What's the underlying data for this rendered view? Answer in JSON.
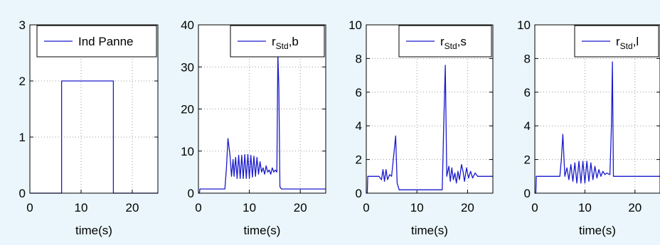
{
  "chart_data": [
    {
      "type": "line",
      "xlabel": "time(s)",
      "ylabel": "",
      "xlim": [
        0,
        25
      ],
      "ylim": [
        0,
        3
      ],
      "xticks": [
        "0",
        "10",
        "20"
      ],
      "yticks": [
        "0",
        "1",
        "2",
        "3"
      ],
      "legend": {
        "main": "Ind Panne",
        "sub": "",
        "suffix": "",
        "placement": "top-right"
      },
      "grid": true,
      "series": [
        {
          "name": "Ind Panne",
          "x": [
            0,
            6.2,
            6.2,
            16.3,
            16.3,
            25
          ],
          "y": [
            0,
            0,
            2,
            2,
            0,
            0
          ]
        }
      ]
    },
    {
      "type": "line",
      "xlabel": "time(s)",
      "ylabel": "",
      "xlim": [
        0,
        25
      ],
      "ylim": [
        0,
        40
      ],
      "xticks": [
        "0",
        "10",
        "20"
      ],
      "yticks": [
        "0",
        "10",
        "20",
        "30",
        "40"
      ],
      "legend": {
        "main": "r",
        "sub": "Std",
        "suffix": ",b",
        "placement": "top-right"
      },
      "grid": true,
      "series": [
        {
          "name": "r_Std,b",
          "x": [
            0,
            0.2,
            0.3,
            5.2,
            5.5,
            5.8,
            6.2,
            6.5,
            6.8,
            7.0,
            7.3,
            7.6,
            7.9,
            8.2,
            8.5,
            8.8,
            9.1,
            9.4,
            9.7,
            10.0,
            10.3,
            10.6,
            10.9,
            11.2,
            11.5,
            11.8,
            12.1,
            12.4,
            12.7,
            13.0,
            13.3,
            13.6,
            13.9,
            14.2,
            14.5,
            14.8,
            15.1,
            15.4,
            15.6,
            15.8,
            16.0,
            16.3,
            17,
            20,
            25
          ],
          "y": [
            0,
            0,
            1,
            1,
            6,
            13,
            9,
            4,
            8,
            4,
            8.5,
            3.5,
            9,
            3.5,
            9,
            3.5,
            9.2,
            3.5,
            9.2,
            3.5,
            9,
            3.8,
            8.8,
            4,
            8.5,
            4.5,
            7.5,
            5,
            6,
            4.5,
            6.5,
            5,
            5.5,
            4.5,
            6,
            5,
            5.5,
            5,
            33,
            25,
            1.5,
            1,
            1,
            1,
            1
          ]
        }
      ]
    },
    {
      "type": "line",
      "xlabel": "time(s)",
      "ylabel": "",
      "xlim": [
        0,
        25
      ],
      "ylim": [
        0,
        10
      ],
      "xticks": [
        "0",
        "10",
        "20"
      ],
      "yticks": [
        "0",
        "2",
        "4",
        "6",
        "8",
        "10"
      ],
      "legend": {
        "main": "r",
        "sub": "Std",
        "suffix": ",s",
        "placement": "top-right"
      },
      "grid": true,
      "series": [
        {
          "name": "r_Std,s",
          "x": [
            0,
            0.2,
            0.3,
            2.5,
            3.0,
            3.3,
            3.6,
            3.9,
            4.2,
            4.6,
            5.0,
            5.5,
            5.8,
            6.1,
            6.5,
            10,
            15.0,
            15.3,
            15.6,
            15.9,
            16.3,
            16.6,
            16.9,
            17.2,
            17.5,
            17.8,
            18.1,
            18.4,
            18.8,
            19.1,
            19.4,
            19.8,
            20.2,
            20.6,
            21.0,
            21.5,
            22.0,
            23.0,
            25
          ],
          "y": [
            0,
            0,
            1,
            1,
            0.8,
            1.4,
            0.7,
            1.4,
            0.8,
            1.1,
            1.0,
            2.5,
            3.4,
            0.6,
            0.2,
            0.2,
            0.2,
            4.0,
            7.6,
            1.0,
            1.6,
            0.7,
            1.5,
            0.8,
            1.2,
            0.6,
            1.3,
            0.8,
            1.7,
            1.3,
            0.7,
            1.5,
            0.9,
            1.3,
            0.9,
            1.2,
            1.0,
            1.0,
            1.0
          ]
        }
      ]
    },
    {
      "type": "line",
      "xlabel": "time(s)",
      "ylabel": "",
      "xlim": [
        0,
        25
      ],
      "ylim": [
        0,
        10
      ],
      "xticks": [
        "0",
        "10",
        "20"
      ],
      "yticks": [
        "0",
        "2",
        "4",
        "6",
        "8",
        "10"
      ],
      "legend": {
        "main": "r",
        "sub": "Std",
        "suffix": ",l",
        "placement": "top-right"
      },
      "grid": true,
      "series": [
        {
          "name": "r_Std,l",
          "x": [
            0,
            0.2,
            0.3,
            5.0,
            5.3,
            5.6,
            6.0,
            6.4,
            6.8,
            7.2,
            7.6,
            8.0,
            8.4,
            8.8,
            9.2,
            9.6,
            10.0,
            10.4,
            10.8,
            11.2,
            11.6,
            12.0,
            12.4,
            12.8,
            13.2,
            13.6,
            14.0,
            14.4,
            15.0,
            15.3,
            15.5,
            15.7,
            16.0,
            20,
            25
          ],
          "y": [
            0,
            0,
            1,
            1,
            2.0,
            3.5,
            1.0,
            1.5,
            0.8,
            1.7,
            0.7,
            1.8,
            0.6,
            1.9,
            0.6,
            1.9,
            0.6,
            1.9,
            0.7,
            1.8,
            0.8,
            1.6,
            0.9,
            1.4,
            1.0,
            1.3,
            1.1,
            1.2,
            1.1,
            4.0,
            7.8,
            1.0,
            1.0,
            1.0,
            1.0
          ]
        }
      ]
    }
  ]
}
